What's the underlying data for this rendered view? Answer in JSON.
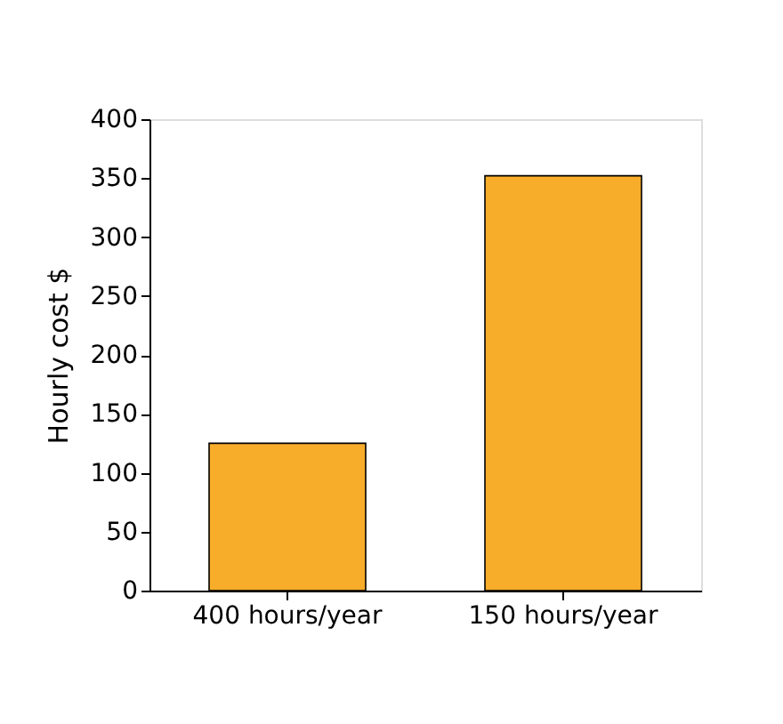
{
  "chart_data": {
    "type": "bar",
    "ylabel": "Hourly cost $",
    "categories": [
      "400 hours/year",
      "150 hours/year"
    ],
    "values": [
      125,
      352
    ],
    "color": "#f8ad2a",
    "ylim": [
      0,
      400
    ],
    "yticks": [
      0,
      50,
      100,
      150,
      200,
      250,
      300,
      350,
      400
    ],
    "grid": false
  }
}
